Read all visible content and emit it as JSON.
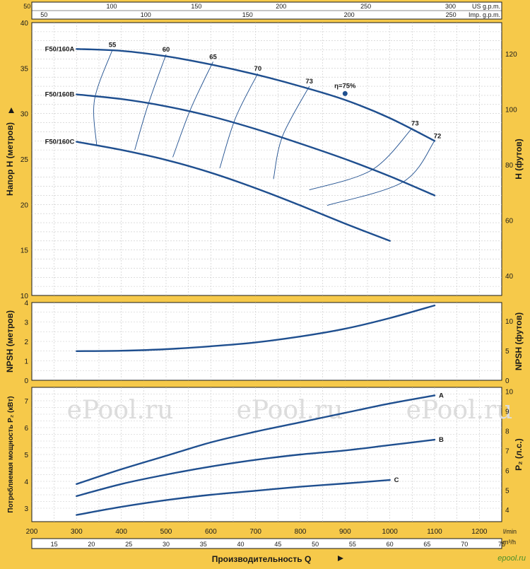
{
  "chart_data": {
    "type": "line",
    "x_axis": {
      "label": "Производительность Q",
      "unit": "l/min",
      "range": [
        200,
        1250
      ],
      "ticks": [
        200,
        300,
        400,
        500,
        600,
        700,
        800,
        900,
        1000,
        1100,
        1200
      ],
      "secondary_m3h": {
        "unit": "m³/h",
        "ticks": [
          15,
          20,
          25,
          30,
          35,
          40,
          45,
          50,
          55,
          60,
          65,
          70,
          75
        ]
      },
      "top_us_gpm": {
        "unit": "US g.p.m.",
        "ticks": [
          50,
          100,
          150,
          200,
          250,
          300
        ]
      },
      "top_imp_gpm": {
        "unit": "Imp. g.p.m.",
        "ticks": [
          50,
          100,
          150,
          200,
          250
        ]
      }
    },
    "head_chart": {
      "ylabel": "Напор  H   (метров)",
      "ylabel_right": "H   (футов)",
      "ylim": [
        10,
        40
      ],
      "yticks": [
        10,
        15,
        20,
        25,
        30,
        35,
        40
      ],
      "right_ticks": [
        40,
        60,
        80,
        100,
        120
      ],
      "series": [
        {
          "name": "F50/160A",
          "x": [
            300,
            400,
            500,
            600,
            700,
            800,
            900,
            1000,
            1100
          ],
          "y": [
            37.1,
            36.9,
            36.3,
            35.4,
            34.3,
            33.0,
            31.5,
            29.5,
            27.0
          ]
        },
        {
          "name": "F50/160B",
          "x": [
            300,
            400,
            500,
            600,
            700,
            800,
            900,
            1000,
            1100
          ],
          "y": [
            32.1,
            31.6,
            30.8,
            29.7,
            28.3,
            26.7,
            25.0,
            23.1,
            21.0
          ]
        },
        {
          "name": "F50/160C",
          "x": [
            300,
            400,
            500,
            600,
            700,
            800,
            900,
            1000
          ],
          "y": [
            26.9,
            26.0,
            24.9,
            23.5,
            21.8,
            19.9,
            17.9,
            16.0
          ]
        }
      ],
      "efficiency_label": "η=75%",
      "efficiency_point": {
        "x": 900,
        "y": 32.2
      },
      "efficiency_curves": [
        {
          "label": "55",
          "points": [
            [
              380,
              37.0
            ],
            [
              340,
              31.5
            ],
            [
              345,
              26.5
            ]
          ]
        },
        {
          "label": "60",
          "points": [
            [
              500,
              36.5
            ],
            [
              460,
              31
            ],
            [
              430,
              26.0
            ]
          ]
        },
        {
          "label": "65",
          "points": [
            [
              605,
              35.7
            ],
            [
              555,
              30.5
            ],
            [
              515,
              25.2
            ]
          ]
        },
        {
          "label": "70",
          "points": [
            [
              705,
              34.4
            ],
            [
              655,
              29.5
            ],
            [
              620,
              24.0
            ]
          ]
        },
        {
          "label": "73",
          "points": [
            [
              820,
              33.0
            ],
            [
              760,
              27.5
            ],
            [
              740,
              22.8
            ]
          ]
        },
        {
          "label": "73",
          "points": [
            [
              1050,
              28.4
            ],
            [
              960,
              23.8
            ],
            [
              820,
              21.6
            ]
          ]
        },
        {
          "label": "72",
          "points": [
            [
              1100,
              27.0
            ],
            [
              1030,
              22.5
            ],
            [
              860,
              19.9
            ]
          ]
        }
      ]
    },
    "npsh_chart": {
      "ylabel": "NPSH   (метров)",
      "ylabel_right": "NPSH   (футов)",
      "ylim": [
        0,
        4
      ],
      "yticks": [
        0,
        1,
        2,
        3,
        4
      ],
      "right_ticks": [
        0,
        5,
        10
      ],
      "x": [
        300,
        400,
        500,
        600,
        700,
        800,
        900,
        1000,
        1100
      ],
      "y": [
        1.5,
        1.52,
        1.6,
        1.75,
        1.95,
        2.25,
        2.65,
        3.2,
        3.85
      ]
    },
    "power_chart": {
      "ylabel": "Потребляемая мощность P₂ (кВт)",
      "ylabel_right": "P₂  (л.с.)",
      "ylim": [
        2.5,
        7.5
      ],
      "yticks": [
        3,
        4,
        5,
        6,
        7
      ],
      "right_ticks": [
        4,
        5,
        6,
        7,
        8,
        9,
        10
      ],
      "series": [
        {
          "name": "A",
          "x": [
            300,
            400,
            500,
            600,
            700,
            800,
            900,
            1000,
            1100
          ],
          "y": [
            3.9,
            4.45,
            4.95,
            5.45,
            5.85,
            6.2,
            6.55,
            6.9,
            7.2
          ]
        },
        {
          "name": "B",
          "x": [
            300,
            400,
            500,
            600,
            700,
            800,
            900,
            1000,
            1100
          ],
          "y": [
            3.45,
            3.9,
            4.25,
            4.55,
            4.8,
            5.0,
            5.15,
            5.35,
            5.55
          ]
        },
        {
          "name": "C",
          "x": [
            300,
            400,
            500,
            600,
            700,
            800,
            900,
            1000
          ],
          "y": [
            2.75,
            3.05,
            3.3,
            3.5,
            3.65,
            3.8,
            3.92,
            4.05
          ]
        }
      ]
    },
    "watermarks": [
      "ePool.ru",
      "ePool.ru",
      "ePool.ru"
    ],
    "brand": "epool.ru",
    "colors": {
      "background": "#f6c94a",
      "curve": "#1f4f8f",
      "plot": "#ffffff"
    }
  }
}
